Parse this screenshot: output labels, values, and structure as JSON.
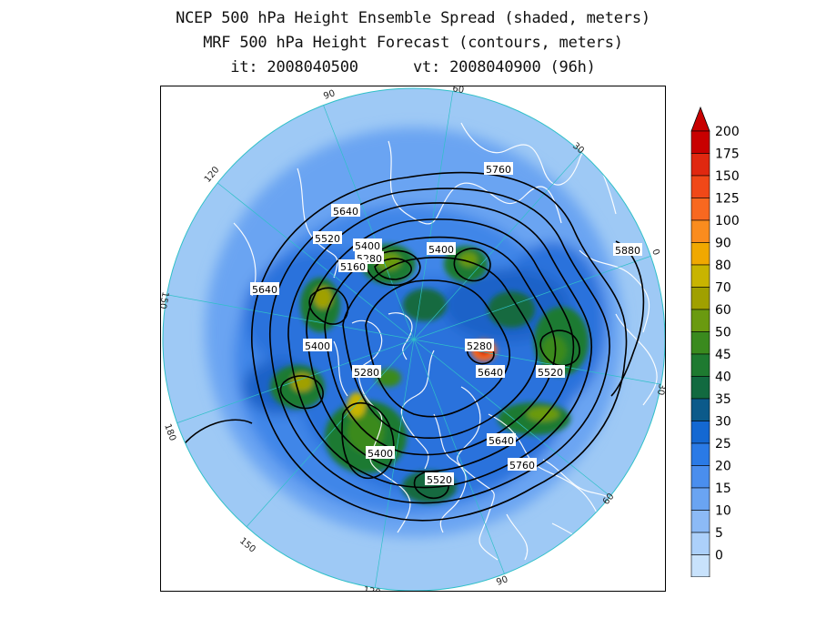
{
  "title": {
    "line1": "NCEP 500 hPa Height Ensemble Spread (shaded, meters)",
    "line2": "MRF 500 hPa Height Forecast (contours, meters)",
    "line3": "it: 2008040500      vt: 2008040900 (96h)"
  },
  "map": {
    "projection": "north-polar-stereographic",
    "background_color": "#9ec9f5",
    "longitude_labels": [
      "90",
      "60",
      "30",
      "0",
      "30",
      "60",
      "90",
      "120",
      "150",
      "180",
      "150",
      "120"
    ],
    "contour_labels": [
      "5760",
      "5640",
      "5520",
      "5400",
      "5280",
      "5160",
      "5400",
      "5880",
      "5640",
      "5400",
      "5280",
      "5280",
      "5640",
      "5520",
      "5640",
      "5400",
      "5760",
      "5520"
    ]
  },
  "colorbar": {
    "levels": [
      "200",
      "175",
      "150",
      "125",
      "100",
      "90",
      "80",
      "70",
      "60",
      "50",
      "45",
      "40",
      "35",
      "30",
      "25",
      "20",
      "15",
      "10",
      "5",
      "0"
    ],
    "colors": [
      "#c80000",
      "#e02810",
      "#f04818",
      "#f86820",
      "#fa8c1e",
      "#f0a800",
      "#c8b400",
      "#a0a000",
      "#6a9a10",
      "#3a8a1e",
      "#1e7a30",
      "#126a40",
      "#0c5a8a",
      "#1468d2",
      "#2a7ae6",
      "#4a8eee",
      "#6aa4f2",
      "#8cbaf6",
      "#acd0fa",
      "#c8e2fc"
    ]
  }
}
